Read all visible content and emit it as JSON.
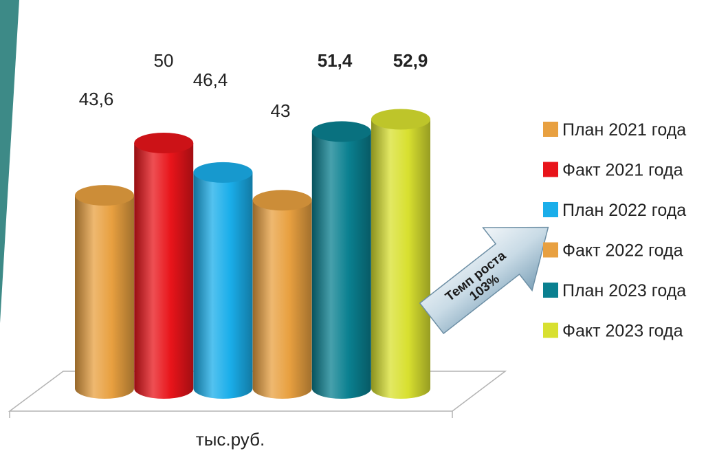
{
  "chart_data": {
    "type": "bar",
    "categories": [
      "План 2021 года",
      "Факт 2021 года",
      "План 2022 года",
      "Факт 2022 года",
      "План 2023 года",
      "Факт 2023 года"
    ],
    "values": [
      43.6,
      50,
      46.4,
      43,
      51.4,
      52.9
    ],
    "value_labels": [
      "43,6",
      "50",
      "46,4",
      "43",
      "51,4",
      "52,9"
    ],
    "bold_labels": [
      false,
      false,
      false,
      false,
      true,
      true
    ],
    "colors": [
      "#E8A040",
      "#E8141A",
      "#1AAEEA",
      "#E8A040",
      "#0A8090",
      "#D8E030"
    ],
    "xlabel": "тыс.руб.",
    "legend": {
      "position": "right",
      "items": [
        "План 2021 года",
        "Факт 2021 года",
        "План 2022 года",
        "Факт 2022 года",
        "План 2023 года",
        "Факт 2023 года"
      ]
    },
    "annotation": {
      "line1": "Темп роста",
      "line2": "103%"
    }
  }
}
